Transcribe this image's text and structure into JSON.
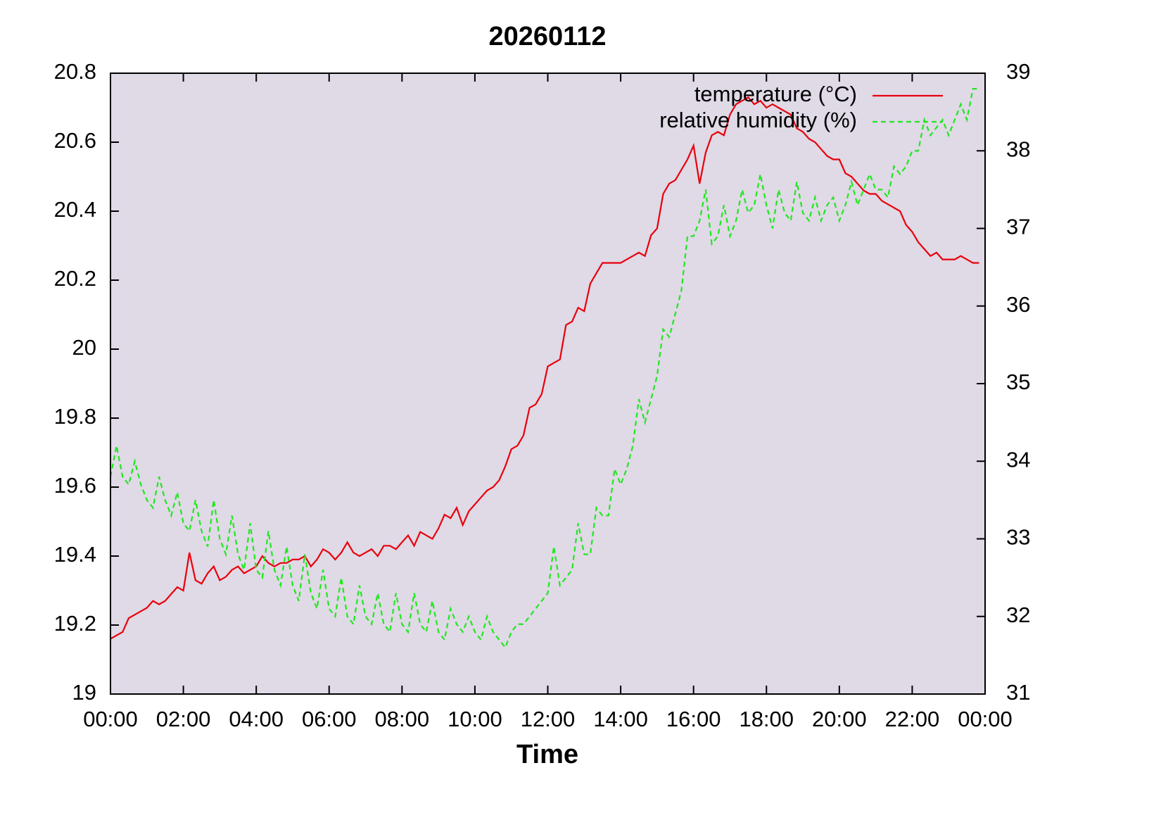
{
  "chart_data": {
    "type": "line",
    "title": "20260112",
    "x_label": "Time",
    "x": [
      0,
      10,
      20,
      30,
      40,
      50,
      60,
      70,
      80,
      90,
      100,
      110,
      120,
      130,
      140,
      150,
      160,
      170,
      180,
      190,
      200,
      210,
      220,
      230,
      240,
      250,
      260,
      270,
      280,
      290,
      300,
      310,
      320,
      330,
      340,
      350,
      360,
      370,
      380,
      390,
      400,
      410,
      420,
      430,
      440,
      450,
      460,
      470,
      480,
      490,
      500,
      510,
      520,
      530,
      540,
      550,
      560,
      570,
      580,
      590,
      600,
      610,
      620,
      630,
      640,
      650,
      660,
      670,
      680,
      690,
      700,
      710,
      720,
      730,
      740,
      750,
      760,
      770,
      780,
      790,
      800,
      810,
      820,
      830,
      840,
      850,
      860,
      870,
      880,
      890,
      900,
      910,
      920,
      930,
      940,
      950,
      960,
      970,
      980,
      990,
      1000,
      1010,
      1020,
      1030,
      1040,
      1050,
      1060,
      1070,
      1080,
      1090,
      1100,
      1110,
      1120,
      1130,
      1140,
      1150,
      1160,
      1170,
      1180,
      1190,
      1200,
      1210,
      1220,
      1230,
      1240,
      1250,
      1260,
      1270,
      1280,
      1290,
      1300,
      1310,
      1320,
      1330,
      1340,
      1350,
      1360,
      1370,
      1380,
      1390,
      1400,
      1410,
      1420,
      1430
    ],
    "xlim": [
      0,
      1440
    ],
    "xticks": [
      {
        "value": 0,
        "label": "00:00"
      },
      {
        "value": 120,
        "label": "02:00"
      },
      {
        "value": 240,
        "label": "04:00"
      },
      {
        "value": 360,
        "label": "06:00"
      },
      {
        "value": 480,
        "label": "08:00"
      },
      {
        "value": 600,
        "label": "10:00"
      },
      {
        "value": 720,
        "label": "12:00"
      },
      {
        "value": 840,
        "label": "14:00"
      },
      {
        "value": 960,
        "label": "16:00"
      },
      {
        "value": 1080,
        "label": "18:00"
      },
      {
        "value": 1200,
        "label": "20:00"
      },
      {
        "value": 1320,
        "label": "22:00"
      },
      {
        "value": 1440,
        "label": "00:00"
      }
    ],
    "ylim": [
      19,
      20.8
    ],
    "yticks": [
      19,
      19.2,
      19.4,
      19.6,
      19.8,
      20,
      20.2,
      20.4,
      20.6,
      20.8
    ],
    "y2lim": [
      31,
      39
    ],
    "y2ticks": [
      31,
      32,
      33,
      34,
      35,
      36,
      37,
      38,
      39
    ],
    "legend": "top-right",
    "grid": false,
    "background": "#e0d9e6",
    "series": [
      {
        "name": "temperature (°C)",
        "color": "#e8000b",
        "line_style": "solid",
        "values": [
          19.16,
          19.17,
          19.18,
          19.22,
          19.23,
          19.24,
          19.25,
          19.27,
          19.26,
          19.27,
          19.29,
          19.31,
          19.3,
          19.41,
          19.33,
          19.32,
          19.35,
          19.37,
          19.33,
          19.34,
          19.36,
          19.37,
          19.35,
          19.36,
          19.37,
          19.4,
          19.38,
          19.37,
          19.38,
          19.38,
          19.39,
          19.39,
          19.4,
          19.37,
          19.39,
          19.42,
          19.41,
          19.39,
          19.41,
          19.44,
          19.41,
          19.4,
          19.41,
          19.42,
          19.4,
          19.43,
          19.43,
          19.42,
          19.44,
          19.46,
          19.43,
          19.47,
          19.46,
          19.45,
          19.48,
          19.52,
          19.51,
          19.54,
          19.49,
          19.53,
          19.55,
          19.57,
          19.59,
          19.6,
          19.62,
          19.66,
          19.71,
          19.72,
          19.75,
          19.83,
          19.84,
          19.87,
          19.95,
          19.96,
          19.97,
          20.07,
          20.08,
          20.12,
          20.11,
          20.19,
          20.22,
          20.25,
          20.25,
          20.25,
          20.25,
          20.26,
          20.27,
          20.28,
          20.27,
          20.33,
          20.35,
          20.45,
          20.48,
          20.49,
          20.52,
          20.55,
          20.59,
          20.48,
          20.57,
          20.62,
          20.63,
          20.62,
          20.68,
          20.71,
          20.72,
          20.73,
          20.71,
          20.72,
          20.7,
          20.71,
          20.7,
          20.69,
          20.68,
          20.64,
          20.63,
          20.61,
          20.6,
          20.58,
          20.56,
          20.55,
          20.55,
          20.51,
          20.5,
          20.48,
          20.46,
          20.45,
          20.45,
          20.43,
          20.42,
          20.41,
          20.4,
          20.36,
          20.34,
          20.31,
          20.29,
          20.27,
          20.28,
          20.26,
          20.26,
          20.26,
          20.27,
          20.26,
          20.25,
          20.25
        ]
      },
      {
        "name": "relative humidity (%)",
        "color": "#1ee81e",
        "line_style": "dashed",
        "axis": "y2",
        "values": [
          33.8,
          34.2,
          33.8,
          33.7,
          34.0,
          33.7,
          33.5,
          33.4,
          33.8,
          33.5,
          33.3,
          33.6,
          33.2,
          33.1,
          33.5,
          33.1,
          32.9,
          33.5,
          33.0,
          32.8,
          33.3,
          32.8,
          32.6,
          33.2,
          32.6,
          32.5,
          33.1,
          32.6,
          32.4,
          32.9,
          32.4,
          32.2,
          32.8,
          32.3,
          32.1,
          32.6,
          32.1,
          32.0,
          32.5,
          32.0,
          31.9,
          32.4,
          32.0,
          31.9,
          32.3,
          31.9,
          31.8,
          32.3,
          31.9,
          31.8,
          32.3,
          31.9,
          31.8,
          32.2,
          31.8,
          31.7,
          32.1,
          31.9,
          31.8,
          32.0,
          31.8,
          31.7,
          32.0,
          31.8,
          31.7,
          31.6,
          31.8,
          31.9,
          31.9,
          32.0,
          32.1,
          32.2,
          32.3,
          32.9,
          32.4,
          32.5,
          32.6,
          33.2,
          32.8,
          32.8,
          33.4,
          33.3,
          33.3,
          33.9,
          33.7,
          33.9,
          34.2,
          34.8,
          34.5,
          34.8,
          35.1,
          35.7,
          35.6,
          35.9,
          36.2,
          36.9,
          36.9,
          37.1,
          37.5,
          36.8,
          36.9,
          37.3,
          36.9,
          37.1,
          37.5,
          37.2,
          37.3,
          37.7,
          37.3,
          37.0,
          37.5,
          37.2,
          37.1,
          37.6,
          37.2,
          37.1,
          37.4,
          37.1,
          37.3,
          37.4,
          37.1,
          37.3,
          37.6,
          37.3,
          37.5,
          37.7,
          37.5,
          37.5,
          37.4,
          37.8,
          37.7,
          37.8,
          38.0,
          38.0,
          38.4,
          38.2,
          38.3,
          38.4,
          38.2,
          38.4,
          38.6,
          38.4,
          38.8,
          38.8
        ]
      }
    ]
  }
}
